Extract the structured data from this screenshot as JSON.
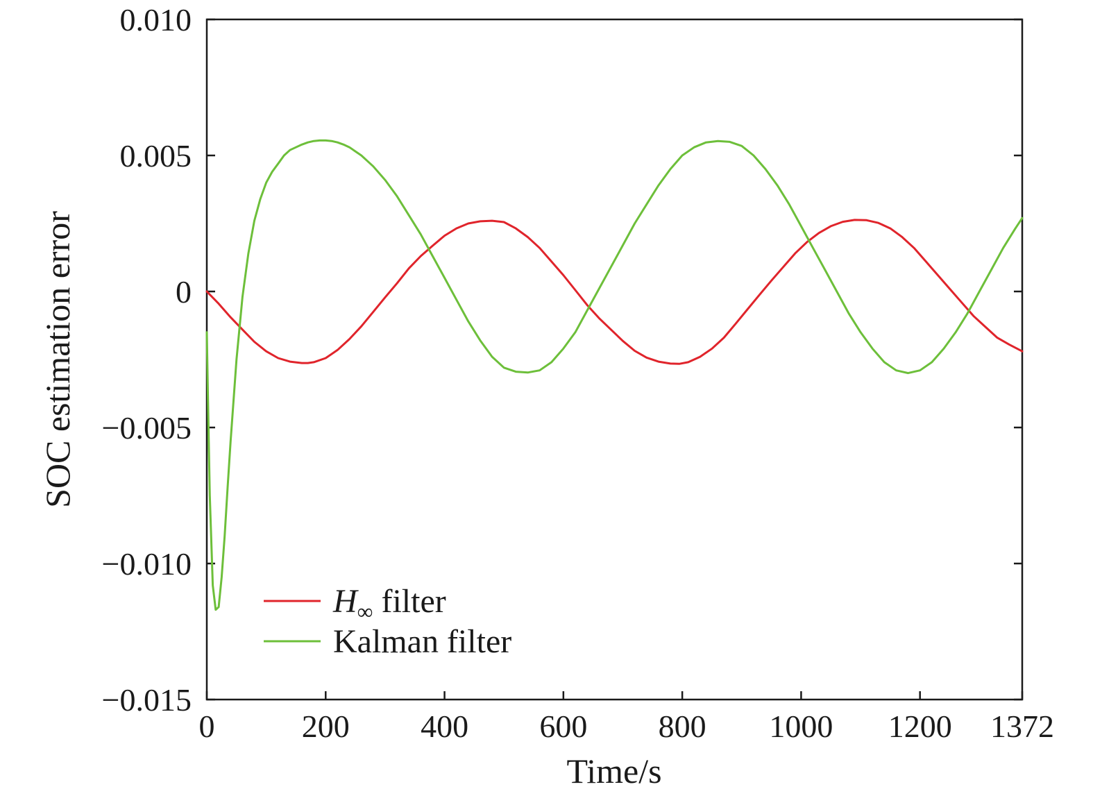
{
  "chart_data": {
    "type": "line",
    "title": "",
    "xlabel": "Time/s",
    "ylabel": "SOC estimation error",
    "xlim": [
      0,
      1372
    ],
    "ylim": [
      -0.015,
      0.01
    ],
    "x_ticks": [
      0,
      200,
      400,
      600,
      800,
      1000,
      1200,
      1372
    ],
    "x_tick_labels": [
      "0",
      "200",
      "400",
      "600",
      "800",
      "1000",
      "1200",
      "1372"
    ],
    "y_ticks": [
      0.01,
      0.005,
      0,
      -0.005,
      -0.01,
      -0.015
    ],
    "y_tick_labels": [
      "0.010",
      "0.005",
      "0",
      "−0.005",
      "−0.010",
      "−0.015"
    ],
    "grid": false,
    "legend_position": "lower-left",
    "series": [
      {
        "name": "H∞ filter",
        "name_main": "H",
        "name_sub": "∞",
        "name_rest": " filter",
        "color": "#e0242b",
        "x": [
          0,
          20,
          40,
          60,
          80,
          100,
          120,
          140,
          160,
          170,
          180,
          200,
          220,
          240,
          260,
          280,
          300,
          320,
          340,
          360,
          380,
          400,
          420,
          440,
          460,
          480,
          500,
          520,
          540,
          560,
          580,
          600,
          620,
          640,
          660,
          680,
          700,
          720,
          740,
          760,
          780,
          795,
          810,
          830,
          850,
          870,
          890,
          910,
          930,
          950,
          970,
          990,
          1010,
          1030,
          1050,
          1070,
          1090,
          1110,
          1130,
          1150,
          1170,
          1190,
          1210,
          1230,
          1250,
          1270,
          1290,
          1310,
          1330,
          1350,
          1372
        ],
        "y": [
          0,
          -0.00045,
          -0.00095,
          -0.0014,
          -0.00185,
          -0.0022,
          -0.00245,
          -0.00258,
          -0.00263,
          -0.00263,
          -0.0026,
          -0.00245,
          -0.00215,
          -0.00175,
          -0.00128,
          -0.00075,
          -0.00022,
          0.0003,
          0.00085,
          0.0013,
          0.00168,
          0.00205,
          0.00232,
          0.0025,
          0.00258,
          0.0026,
          0.00255,
          0.00232,
          0.002,
          0.0016,
          0.0011,
          0.0006,
          5e-05,
          -0.0005,
          -0.00098,
          -0.0014,
          -0.00182,
          -0.00218,
          -0.00243,
          -0.00258,
          -0.00265,
          -0.00266,
          -0.0026,
          -0.0024,
          -0.0021,
          -0.0017,
          -0.00118,
          -0.00065,
          -0.00012,
          0.0004,
          0.0009,
          0.0014,
          0.00182,
          0.00215,
          0.0024,
          0.00256,
          0.00263,
          0.00262,
          0.00252,
          0.00232,
          0.002,
          0.0016,
          0.0011,
          0.0006,
          0.0001,
          -0.0004,
          -0.0009,
          -0.0013,
          -0.0017,
          -0.00195,
          -0.0022
        ]
      },
      {
        "name": "Kalman filter",
        "color": "#6dbf3a",
        "x": [
          0,
          2,
          5,
          10,
          15,
          20,
          25,
          30,
          35,
          40,
          50,
          60,
          70,
          80,
          90,
          100,
          110,
          120,
          130,
          140,
          150,
          160,
          170,
          180,
          190,
          200,
          210,
          220,
          230,
          240,
          250,
          260,
          270,
          280,
          300,
          320,
          340,
          360,
          380,
          400,
          420,
          440,
          460,
          480,
          500,
          520,
          540,
          560,
          580,
          600,
          620,
          640,
          660,
          680,
          700,
          720,
          740,
          760,
          780,
          800,
          820,
          840,
          860,
          880,
          900,
          920,
          940,
          960,
          980,
          1000,
          1020,
          1040,
          1060,
          1080,
          1100,
          1120,
          1140,
          1160,
          1180,
          1200,
          1220,
          1240,
          1260,
          1280,
          1300,
          1320,
          1340,
          1360,
          1372
        ],
        "y": [
          -0.0015,
          -0.004,
          -0.0075,
          -0.0108,
          -0.0117,
          -0.0116,
          -0.0105,
          -0.009,
          -0.0072,
          -0.0055,
          -0.0025,
          -0.0002,
          0.0014,
          0.0026,
          0.0034,
          0.004,
          0.0044,
          0.0047,
          0.005,
          0.0052,
          0.0053,
          0.0054,
          0.00548,
          0.00553,
          0.00555,
          0.00555,
          0.00553,
          0.00548,
          0.0054,
          0.0053,
          0.00515,
          0.005,
          0.0048,
          0.0046,
          0.0041,
          0.0035,
          0.0028,
          0.0021,
          0.0013,
          0.0005,
          -0.0003,
          -0.0011,
          -0.0018,
          -0.0024,
          -0.0028,
          -0.00295,
          -0.00298,
          -0.0029,
          -0.0026,
          -0.0021,
          -0.0015,
          -0.0007,
          0.0001,
          0.0009,
          0.0017,
          0.0025,
          0.0032,
          0.0039,
          0.0045,
          0.005,
          0.0053,
          0.00548,
          0.00553,
          0.0055,
          0.00535,
          0.005,
          0.0045,
          0.0039,
          0.0032,
          0.0024,
          0.0016,
          0.0008,
          0.0,
          -0.0008,
          -0.0015,
          -0.0021,
          -0.0026,
          -0.0029,
          -0.003,
          -0.0029,
          -0.0026,
          -0.0021,
          -0.0015,
          -0.0008,
          0.0,
          0.0008,
          0.0016,
          0.0023,
          0.0027
        ]
      }
    ]
  }
}
